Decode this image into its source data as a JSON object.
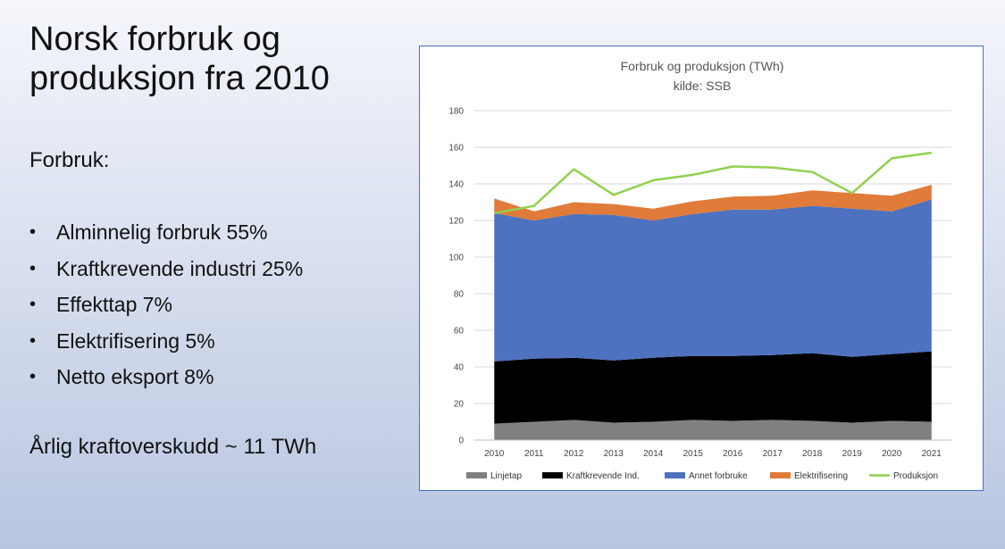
{
  "slide": {
    "title": "Norsk forbruk og produksjon fra 2010",
    "section_label": "Forbruk:",
    "bullets": [
      "Alminnelig forbruk 55%",
      "Kraftkrevende industri 25%",
      "Effekttap 7%",
      "Elektrifisering 5%",
      "Netto eksport 8%"
    ],
    "summary": "Årlig kraftoverskudd ~ 11 TWh"
  },
  "chart_data": {
    "type": "area",
    "title": "Forbruk og produksjon (TWh)",
    "subtitle": "kilde: SSB",
    "x": [
      "2010",
      "2011",
      "2012",
      "2013",
      "2014",
      "2015",
      "2016",
      "2017",
      "2018",
      "2019",
      "2020",
      "2021"
    ],
    "ylim": [
      0,
      180
    ],
    "yticks": [
      0,
      20,
      40,
      60,
      80,
      100,
      120,
      140,
      160,
      180
    ],
    "grid": true,
    "legend_position": "bottom",
    "stacked": true,
    "series": [
      {
        "name": "Linjetap",
        "type": "area",
        "color": "#808080",
        "values": [
          9,
          10,
          11,
          9.5,
          10,
          11,
          10.5,
          11,
          10.5,
          9.5,
          10.5,
          10
        ]
      },
      {
        "name": "Kraftkrevende Ind.",
        "type": "area",
        "color": "#000000",
        "values": [
          34,
          34.5,
          34,
          34,
          35,
          35,
          35.5,
          35.5,
          37,
          36,
          36.5,
          38.5
        ]
      },
      {
        "name": "Annet forbruke",
        "type": "area",
        "color": "#4e72bf",
        "values": [
          81,
          75.5,
          78.5,
          79.5,
          75,
          77.5,
          80,
          79.5,
          80.5,
          81,
          78,
          83
        ]
      },
      {
        "name": "Elektrifisering",
        "type": "area",
        "color": "#e07b39",
        "values": [
          8,
          5,
          6.5,
          6,
          6.5,
          7,
          7,
          7.5,
          8.5,
          8.5,
          8.5,
          8
        ]
      },
      {
        "name": "Produksjon",
        "type": "line",
        "color": "#92d050",
        "values": [
          124,
          128,
          148,
          134,
          142,
          145,
          149.5,
          149,
          146.5,
          135,
          154,
          157
        ]
      }
    ]
  }
}
